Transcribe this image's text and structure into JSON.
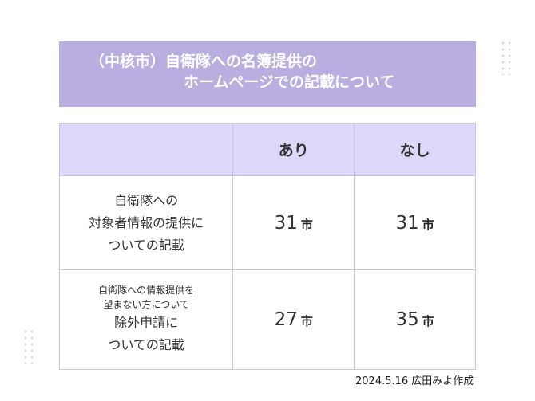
{
  "banner": {
    "line1": "（中核市）自衛隊への名簿提供の",
    "line2": "ホームページでの記載について"
  },
  "table": {
    "headers": [
      "",
      "あり",
      "なし"
    ],
    "rows": [
      {
        "label_lines": [
          "自衛隊への",
          "対象者情報の提供に",
          "ついての記載"
        ],
        "ari": "31",
        "nashi": "31",
        "unit": "市"
      },
      {
        "label_small": [
          "自衛隊への情報提供を",
          "望まない方について"
        ],
        "label_lines": [
          "除外申請に",
          "ついての記載"
        ],
        "ari": "27",
        "nashi": "35",
        "unit": "市"
      }
    ]
  },
  "credit": "2024.5.16 広田みよ作成"
}
